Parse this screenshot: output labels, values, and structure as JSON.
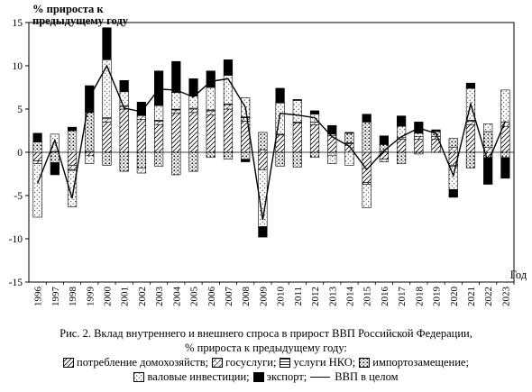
{
  "chart_data": {
    "type": "bar",
    "stacked": true,
    "ylabel": "% прироста к предыдущему году",
    "xlabel": "Год",
    "ylim": [
      -15,
      15
    ],
    "yticks": [
      -15,
      -10,
      -5,
      0,
      5,
      10,
      15
    ],
    "grid": false,
    "categories": [
      "1996",
      "1997",
      "1998",
      "1999",
      "2000",
      "2001",
      "2002",
      "2003",
      "2004",
      "2005",
      "2006",
      "2007",
      "2008",
      "2009",
      "2010",
      "2011",
      "2012",
      "2013",
      "2014",
      "2015",
      "2016",
      "2017",
      "2018",
      "2019",
      "2020",
      "2021",
      "2022",
      "2023"
    ],
    "series": [
      {
        "name": "потребление домохозяйств",
        "key": "hh",
        "values": [
          -1.0,
          0.1,
          -1.5,
          -0.4,
          3.5,
          5.0,
          3.8,
          3.2,
          4.5,
          4.6,
          4.3,
          5.0,
          3.6,
          -2.0,
          2.0,
          3.4,
          3.2,
          1.9,
          1.0,
          -3.5,
          -0.8,
          1.5,
          1.5,
          1.5,
          -1.5,
          3.2,
          -0.6,
          3.0
        ]
      },
      {
        "name": "госуслуги",
        "key": "gov",
        "values": [
          -0.3,
          0.0,
          -0.5,
          0.1,
          0.4,
          0.3,
          0.4,
          0.4,
          0.4,
          0.4,
          0.5,
          0.5,
          0.4,
          0.3,
          0.1,
          0.1,
          0.3,
          0.2,
          0.1,
          -0.2,
          0.1,
          0.2,
          0.3,
          0.3,
          0.6,
          0.4,
          0.6,
          0.5
        ]
      },
      {
        "name": "услуги НКО",
        "key": "nko",
        "values": [
          0.0,
          0.0,
          -0.1,
          0.0,
          0.1,
          0.1,
          0.1,
          0.1,
          0.1,
          0.1,
          0.1,
          0.1,
          0.1,
          0.0,
          0.0,
          0.0,
          0.0,
          0.0,
          0.0,
          0.0,
          0.0,
          0.0,
          0.0,
          0.0,
          -0.1,
          0.1,
          0.0,
          0.0
        ]
      },
      {
        "name": "импортозамещение",
        "key": "imp",
        "values": [
          1.2,
          -1.2,
          2.5,
          4.5,
          -1.5,
          -2.2,
          -1.8,
          -1.6,
          -2.6,
          -2.2,
          -0.6,
          -0.8,
          -0.8,
          2.0,
          -1.6,
          -1.7,
          -0.6,
          -0.4,
          1.1,
          3.5,
          0.8,
          -1.3,
          -0.2,
          0.6,
          1.0,
          -1.8,
          1.8,
          -0.6
        ]
      },
      {
        "name": "валовые инвестиции",
        "key": "inv",
        "values": [
          -6.2,
          2.0,
          -4.2,
          -0.9,
          6.7,
          1.6,
          -0.6,
          1.7,
          1.9,
          1.4,
          2.6,
          3.3,
          2.2,
          -6.6,
          3.6,
          2.5,
          0.9,
          -0.9,
          -1.5,
          -2.7,
          -0.3,
          1.3,
          0.4,
          0.0,
          -2.7,
          3.7,
          0.9,
          3.7
        ]
      },
      {
        "name": "экспорт",
        "key": "exp",
        "values": [
          1.0,
          -1.4,
          0.4,
          3.1,
          3.7,
          1.3,
          1.5,
          4.0,
          3.6,
          2.0,
          1.9,
          1.8,
          -0.3,
          -1.2,
          1.7,
          0.1,
          0.4,
          1.0,
          0.1,
          0.9,
          1.0,
          1.2,
          1.3,
          0.2,
          -0.9,
          0.6,
          -3.1,
          -2.4
        ]
      }
    ],
    "line": {
      "name": "ВВП в целом",
      "values": [
        -3.6,
        1.4,
        -5.3,
        6.4,
        10.0,
        5.1,
        4.7,
        7.3,
        7.2,
        6.4,
        8.2,
        8.5,
        5.2,
        -7.8,
        4.5,
        4.3,
        4.0,
        1.8,
        0.7,
        -2.0,
        0.2,
        1.8,
        2.8,
        2.2,
        -2.7,
        5.6,
        -1.2,
        3.6
      ]
    }
  },
  "caption": {
    "line1": "Рис. 2. Вклад внутреннего и внешнего спроса в прирост ВВП Российской Федерации,",
    "line2": "% прироста к предыдущему году:",
    "legend": [
      {
        "key": "hh",
        "label": "потребление домохозяйств;"
      },
      {
        "key": "gov",
        "label": "госуслуги;"
      },
      {
        "key": "nko",
        "label": "услуги НКО;"
      },
      {
        "key": "imp",
        "label": "импортозамещение;"
      },
      {
        "key": "inv",
        "label": "валовые инвестиции;"
      },
      {
        "key": "exp",
        "label": "экспорт;"
      },
      {
        "key": "gdp",
        "label": "ВВП в целом"
      }
    ]
  }
}
